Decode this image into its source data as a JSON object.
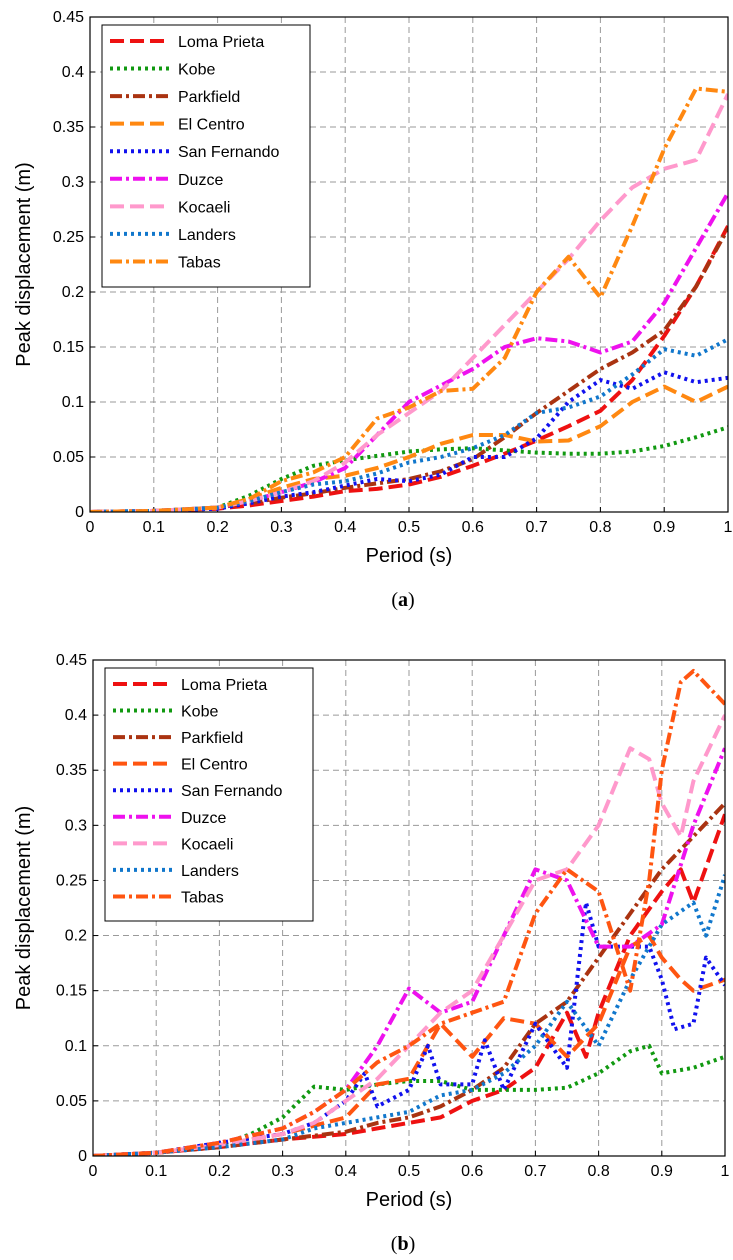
{
  "chart_data": [
    {
      "panel_label": "a",
      "type": "line",
      "xlabel": "Period (s)",
      "ylabel": "Peak displacement (m)",
      "xlim": [
        0,
        1
      ],
      "ylim": [
        0,
        0.45
      ],
      "x_ticks": [
        "0",
        "0.1",
        "0.2",
        "0.3",
        "0.4",
        "0.5",
        "0.6",
        "0.7",
        "0.8",
        "0.9",
        "1"
      ],
      "y_ticks": [
        "0",
        "0.05",
        "0.1",
        "0.15",
        "0.2",
        "0.25",
        "0.3",
        "0.35",
        "0.4",
        "0.45"
      ],
      "grid": true,
      "legend_position": "top-left",
      "series": [
        {
          "name": "Loma Prieta",
          "color": "#ee1111",
          "style": "dash",
          "x": [
            0,
            0.1,
            0.2,
            0.25,
            0.3,
            0.35,
            0.4,
            0.45,
            0.5,
            0.55,
            0.6,
            0.65,
            0.7,
            0.75,
            0.8,
            0.85,
            0.9,
            0.95,
            1.0
          ],
          "y": [
            0,
            0.001,
            0.003,
            0.006,
            0.01,
            0.014,
            0.019,
            0.021,
            0.025,
            0.032,
            0.042,
            0.053,
            0.065,
            0.078,
            0.092,
            0.12,
            0.16,
            0.205,
            0.26
          ]
        },
        {
          "name": "Kobe",
          "color": "#119911",
          "style": "dot",
          "x": [
            0,
            0.1,
            0.2,
            0.25,
            0.3,
            0.35,
            0.4,
            0.45,
            0.5,
            0.55,
            0.6,
            0.65,
            0.7,
            0.75,
            0.8,
            0.85,
            0.9,
            0.95,
            1.0
          ],
          "y": [
            0,
            0.001,
            0.004,
            0.015,
            0.03,
            0.042,
            0.047,
            0.051,
            0.055,
            0.057,
            0.058,
            0.056,
            0.054,
            0.053,
            0.053,
            0.055,
            0.06,
            0.068,
            0.077
          ]
        },
        {
          "name": "Parkfield",
          "color": "#aa3311",
          "style": "dashdot",
          "x": [
            0,
            0.1,
            0.2,
            0.25,
            0.3,
            0.35,
            0.4,
            0.45,
            0.5,
            0.55,
            0.6,
            0.65,
            0.7,
            0.75,
            0.8,
            0.85,
            0.9,
            0.95,
            1.0
          ],
          "y": [
            0,
            0.001,
            0.004,
            0.008,
            0.013,
            0.017,
            0.022,
            0.026,
            0.03,
            0.037,
            0.048,
            0.068,
            0.09,
            0.11,
            0.13,
            0.145,
            0.165,
            0.205,
            0.258
          ]
        },
        {
          "name": "El Centro",
          "color": "#ff8811",
          "style": "dash",
          "x": [
            0,
            0.1,
            0.2,
            0.25,
            0.3,
            0.35,
            0.4,
            0.45,
            0.5,
            0.55,
            0.6,
            0.65,
            0.7,
            0.75,
            0.8,
            0.85,
            0.9,
            0.95,
            1.0
          ],
          "y": [
            0,
            0.001,
            0.004,
            0.012,
            0.022,
            0.03,
            0.033,
            0.04,
            0.05,
            0.062,
            0.07,
            0.07,
            0.064,
            0.065,
            0.078,
            0.1,
            0.114,
            0.1,
            0.114
          ]
        },
        {
          "name": "San Fernando",
          "color": "#1111ee",
          "style": "dot",
          "x": [
            0,
            0.1,
            0.2,
            0.25,
            0.3,
            0.35,
            0.4,
            0.45,
            0.5,
            0.55,
            0.6,
            0.65,
            0.7,
            0.75,
            0.8,
            0.85,
            0.9,
            0.95,
            1.0
          ],
          "y": [
            0,
            0.001,
            0.003,
            0.008,
            0.014,
            0.018,
            0.024,
            0.03,
            0.028,
            0.034,
            0.05,
            0.05,
            0.067,
            0.1,
            0.12,
            0.112,
            0.127,
            0.118,
            0.122
          ]
        },
        {
          "name": "Duzce",
          "color": "#ee11ee",
          "style": "dashdot",
          "x": [
            0,
            0.1,
            0.2,
            0.25,
            0.3,
            0.35,
            0.4,
            0.45,
            0.5,
            0.55,
            0.6,
            0.65,
            0.7,
            0.75,
            0.8,
            0.85,
            0.9,
            0.95,
            1.0
          ],
          "y": [
            0,
            0.001,
            0.004,
            0.01,
            0.018,
            0.027,
            0.04,
            0.07,
            0.1,
            0.115,
            0.13,
            0.15,
            0.158,
            0.155,
            0.145,
            0.155,
            0.19,
            0.24,
            0.29
          ]
        },
        {
          "name": "Kocaeli",
          "color": "#ff99cc",
          "style": "dash",
          "x": [
            0,
            0.1,
            0.2,
            0.25,
            0.3,
            0.35,
            0.4,
            0.45,
            0.5,
            0.55,
            0.6,
            0.65,
            0.7,
            0.75,
            0.8,
            0.85,
            0.9,
            0.95,
            1.0
          ],
          "y": [
            0,
            0.001,
            0.004,
            0.01,
            0.018,
            0.028,
            0.045,
            0.07,
            0.09,
            0.11,
            0.14,
            0.17,
            0.2,
            0.23,
            0.265,
            0.295,
            0.312,
            0.32,
            0.38
          ]
        },
        {
          "name": "Landers",
          "color": "#1177cc",
          "style": "dot",
          "x": [
            0,
            0.1,
            0.2,
            0.25,
            0.3,
            0.35,
            0.4,
            0.45,
            0.5,
            0.55,
            0.6,
            0.65,
            0.7,
            0.75,
            0.8,
            0.85,
            0.9,
            0.95,
            1.0
          ],
          "y": [
            0,
            0.001,
            0.004,
            0.01,
            0.018,
            0.025,
            0.028,
            0.035,
            0.045,
            0.05,
            0.058,
            0.07,
            0.09,
            0.095,
            0.105,
            0.125,
            0.148,
            0.142,
            0.157
          ]
        },
        {
          "name": "Tabas",
          "color": "#ff8811",
          "style": "dashdot",
          "x": [
            0,
            0.1,
            0.2,
            0.25,
            0.3,
            0.35,
            0.4,
            0.45,
            0.5,
            0.55,
            0.6,
            0.65,
            0.7,
            0.75,
            0.8,
            0.85,
            0.9,
            0.95,
            1.0
          ],
          "y": [
            0,
            0.001,
            0.004,
            0.012,
            0.028,
            0.036,
            0.05,
            0.085,
            0.095,
            0.11,
            0.112,
            0.14,
            0.2,
            0.232,
            0.195,
            0.26,
            0.33,
            0.385,
            0.382
          ]
        }
      ]
    },
    {
      "panel_label": "b",
      "type": "line",
      "xlabel": "Period (s)",
      "ylabel": "Peak displacement (m)",
      "xlim": [
        0,
        1
      ],
      "ylim": [
        0,
        0.45
      ],
      "x_ticks": [
        "0",
        "0.1",
        "0.2",
        "0.3",
        "0.4",
        "0.5",
        "0.6",
        "0.7",
        "0.8",
        "0.9",
        "1"
      ],
      "y_ticks": [
        "0",
        "0.05",
        "0.1",
        "0.15",
        "0.2",
        "0.25",
        "0.3",
        "0.35",
        "0.4",
        "0.45"
      ],
      "grid": true,
      "legend_position": "top-left",
      "series": [
        {
          "name": "Loma Prieta",
          "color": "#ee1111",
          "style": "dash",
          "x": [
            0,
            0.1,
            0.2,
            0.3,
            0.4,
            0.45,
            0.5,
            0.55,
            0.6,
            0.65,
            0.7,
            0.75,
            0.78,
            0.8,
            0.85,
            0.9,
            0.93,
            0.95,
            1.0
          ],
          "y": [
            0,
            0.003,
            0.008,
            0.015,
            0.02,
            0.025,
            0.03,
            0.035,
            0.05,
            0.06,
            0.08,
            0.13,
            0.09,
            0.13,
            0.2,
            0.24,
            0.26,
            0.23,
            0.31
          ]
        },
        {
          "name": "Kobe",
          "color": "#119911",
          "style": "dot",
          "x": [
            0,
            0.1,
            0.2,
            0.25,
            0.3,
            0.35,
            0.4,
            0.45,
            0.5,
            0.55,
            0.6,
            0.65,
            0.7,
            0.75,
            0.8,
            0.85,
            0.88,
            0.9,
            0.95,
            1.0
          ],
          "y": [
            0,
            0.003,
            0.01,
            0.02,
            0.035,
            0.063,
            0.06,
            0.065,
            0.068,
            0.068,
            0.06,
            0.06,
            0.06,
            0.062,
            0.075,
            0.095,
            0.1,
            0.075,
            0.08,
            0.09
          ]
        },
        {
          "name": "Parkfield",
          "color": "#aa3311",
          "style": "dashdot",
          "x": [
            0,
            0.1,
            0.2,
            0.3,
            0.4,
            0.45,
            0.5,
            0.55,
            0.6,
            0.65,
            0.7,
            0.75,
            0.8,
            0.85,
            0.9,
            0.95,
            1.0
          ],
          "y": [
            0,
            0.003,
            0.008,
            0.015,
            0.022,
            0.03,
            0.035,
            0.045,
            0.06,
            0.08,
            0.12,
            0.14,
            0.18,
            0.22,
            0.26,
            0.29,
            0.32
          ]
        },
        {
          "name": "El Centro",
          "color": "#ff5511",
          "style": "dash",
          "x": [
            0,
            0.1,
            0.2,
            0.3,
            0.4,
            0.45,
            0.5,
            0.55,
            0.6,
            0.65,
            0.7,
            0.75,
            0.8,
            0.85,
            0.88,
            0.9,
            0.93,
            0.95,
            1.0
          ],
          "y": [
            0,
            0.003,
            0.01,
            0.02,
            0.035,
            0.065,
            0.07,
            0.12,
            0.09,
            0.125,
            0.12,
            0.09,
            0.12,
            0.19,
            0.2,
            0.18,
            0.16,
            0.15,
            0.16
          ]
        },
        {
          "name": "San Fernando",
          "color": "#1111ee",
          "style": "dot",
          "x": [
            0,
            0.1,
            0.2,
            0.3,
            0.35,
            0.4,
            0.43,
            0.45,
            0.5,
            0.53,
            0.55,
            0.6,
            0.62,
            0.65,
            0.7,
            0.75,
            0.78,
            0.8,
            0.85,
            0.88,
            0.9,
            0.92,
            0.95,
            0.97,
            1.0
          ],
          "y": [
            0,
            0.003,
            0.012,
            0.02,
            0.03,
            0.05,
            0.075,
            0.045,
            0.06,
            0.1,
            0.065,
            0.065,
            0.105,
            0.06,
            0.12,
            0.08,
            0.23,
            0.19,
            0.19,
            0.19,
            0.16,
            0.115,
            0.12,
            0.18,
            0.155
          ]
        },
        {
          "name": "Duzce",
          "color": "#ee11ee",
          "style": "dashdot",
          "x": [
            0,
            0.1,
            0.2,
            0.3,
            0.35,
            0.4,
            0.45,
            0.5,
            0.55,
            0.6,
            0.65,
            0.7,
            0.75,
            0.8,
            0.85,
            0.9,
            0.95,
            1.0
          ],
          "y": [
            0,
            0.003,
            0.012,
            0.025,
            0.04,
            0.06,
            0.1,
            0.152,
            0.13,
            0.14,
            0.2,
            0.26,
            0.25,
            0.19,
            0.19,
            0.21,
            0.3,
            0.37
          ]
        },
        {
          "name": "Kocaeli",
          "color": "#ff99cc",
          "style": "dash",
          "x": [
            0,
            0.1,
            0.2,
            0.3,
            0.35,
            0.4,
            0.45,
            0.5,
            0.55,
            0.6,
            0.65,
            0.7,
            0.75,
            0.8,
            0.85,
            0.88,
            0.9,
            0.93,
            0.95,
            1.0
          ],
          "y": [
            0,
            0.003,
            0.01,
            0.02,
            0.03,
            0.05,
            0.07,
            0.1,
            0.13,
            0.15,
            0.2,
            0.25,
            0.26,
            0.3,
            0.37,
            0.36,
            0.32,
            0.29,
            0.34,
            0.4
          ]
        },
        {
          "name": "Landers",
          "color": "#1177cc",
          "style": "dot",
          "x": [
            0,
            0.1,
            0.2,
            0.3,
            0.35,
            0.4,
            0.45,
            0.5,
            0.55,
            0.6,
            0.65,
            0.7,
            0.75,
            0.8,
            0.85,
            0.9,
            0.95,
            0.97,
            1.0
          ],
          "y": [
            0,
            0.003,
            0.008,
            0.015,
            0.025,
            0.03,
            0.035,
            0.04,
            0.055,
            0.06,
            0.075,
            0.1,
            0.14,
            0.1,
            0.16,
            0.21,
            0.23,
            0.2,
            0.255
          ]
        },
        {
          "name": "Tabas",
          "color": "#ff5511",
          "style": "dashdot",
          "x": [
            0,
            0.1,
            0.2,
            0.3,
            0.35,
            0.4,
            0.45,
            0.5,
            0.55,
            0.6,
            0.65,
            0.7,
            0.75,
            0.8,
            0.85,
            0.88,
            0.9,
            0.93,
            0.95,
            1.0
          ],
          "y": [
            0,
            0.003,
            0.012,
            0.025,
            0.04,
            0.06,
            0.085,
            0.1,
            0.12,
            0.13,
            0.14,
            0.22,
            0.26,
            0.24,
            0.15,
            0.25,
            0.35,
            0.43,
            0.44,
            0.41
          ]
        }
      ]
    }
  ]
}
